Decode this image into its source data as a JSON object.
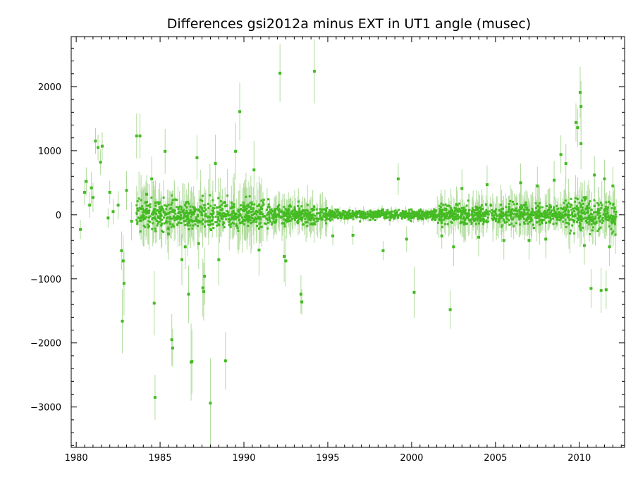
{
  "chart_data": {
    "type": "scatter",
    "title": "Differences gsi2012a minus EXT in UT1 angle    (musec)",
    "xlabel": "",
    "ylabel": "",
    "xlim": [
      1979.7,
      2012.7
    ],
    "ylim": [
      -3630,
      2780
    ],
    "x_ticks": [
      1980,
      1985,
      1990,
      1995,
      2000,
      2005,
      2010
    ],
    "x_tick_labels": [
      "1980",
      "1985",
      "1990",
      "1995",
      "2000",
      "2005",
      "2010"
    ],
    "y_ticks": [
      2000,
      1000,
      0,
      -1000,
      -2000,
      -3000
    ],
    "y_tick_labels": [
      "2000",
      "1000",
      "0",
      "−1000",
      "−2000",
      "−3000"
    ],
    "grid": false,
    "legend": "none",
    "colors": {
      "points": "#44bb22",
      "error_bars": "#b0dc9c",
      "frame": "#000000"
    },
    "series": [
      {
        "points": [
          {
            "x": 1980.25,
            "y": -230,
            "err": 150
          },
          {
            "x": 1980.5,
            "y": 350,
            "err": 200
          },
          {
            "x": 1980.6,
            "y": 520,
            "err": 220
          },
          {
            "x": 1980.8,
            "y": 150,
            "err": 200
          },
          {
            "x": 1980.9,
            "y": 420,
            "err": 250
          },
          {
            "x": 1981.0,
            "y": 270,
            "err": 230
          },
          {
            "x": 1981.15,
            "y": 1150,
            "err": 200
          },
          {
            "x": 1981.3,
            "y": 1050,
            "err": 200
          },
          {
            "x": 1981.45,
            "y": 820,
            "err": 200
          },
          {
            "x": 1981.55,
            "y": 1070,
            "err": 220
          },
          {
            "x": 1981.9,
            "y": -50,
            "err": 150
          },
          {
            "x": 1982.0,
            "y": 350,
            "err": 180
          },
          {
            "x": 1982.2,
            "y": 50,
            "err": 200
          },
          {
            "x": 1982.5,
            "y": 150,
            "err": 220
          },
          {
            "x": 1982.7,
            "y": -560,
            "err": 300
          },
          {
            "x": 1982.75,
            "y": -1660,
            "err": 500
          },
          {
            "x": 1982.8,
            "y": -720,
            "err": 400
          },
          {
            "x": 1982.85,
            "y": -1070,
            "err": 500
          },
          {
            "x": 1983.0,
            "y": 380,
            "err": 300
          },
          {
            "x": 1983.3,
            "y": -100,
            "err": 300
          },
          {
            "x": 1983.6,
            "y": 1230,
            "err": 350
          },
          {
            "x": 1983.8,
            "y": 1230,
            "err": 350
          },
          {
            "x": 1984.2,
            "y": 320,
            "err": 300
          },
          {
            "x": 1984.5,
            "y": 560,
            "err": 350
          },
          {
            "x": 1984.65,
            "y": -1380,
            "err": 500
          },
          {
            "x": 1984.7,
            "y": -2850,
            "err": 350
          },
          {
            "x": 1985.3,
            "y": 990,
            "err": 350
          },
          {
            "x": 1985.5,
            "y": -300,
            "err": 400
          },
          {
            "x": 1985.7,
            "y": -1950,
            "err": 400
          },
          {
            "x": 1985.75,
            "y": -2080,
            "err": 300
          },
          {
            "x": 1986.3,
            "y": -700,
            "err": 400
          },
          {
            "x": 1986.5,
            "y": -500,
            "err": 350
          },
          {
            "x": 1986.7,
            "y": -1240,
            "err": 450
          },
          {
            "x": 1986.85,
            "y": -2300,
            "err": 600
          },
          {
            "x": 1986.9,
            "y": -2290,
            "err": 500
          },
          {
            "x": 1987.2,
            "y": 890,
            "err": 350
          },
          {
            "x": 1987.3,
            "y": -450,
            "err": 400
          },
          {
            "x": 1987.55,
            "y": -1140,
            "err": 450
          },
          {
            "x": 1987.6,
            "y": -1200,
            "err": 450
          },
          {
            "x": 1987.65,
            "y": -960,
            "err": 450
          },
          {
            "x": 1988.0,
            "y": -2940,
            "err": 700
          },
          {
            "x": 1988.3,
            "y": 800,
            "err": 450
          },
          {
            "x": 1988.5,
            "y": -700,
            "err": 400
          },
          {
            "x": 1988.9,
            "y": -2280,
            "err": 450
          },
          {
            "x": 1989.5,
            "y": 990,
            "err": 450
          },
          {
            "x": 1989.75,
            "y": 1610,
            "err": 450
          },
          {
            "x": 1990.6,
            "y": 700,
            "err": 450
          },
          {
            "x": 1990.9,
            "y": -550,
            "err": 400
          },
          {
            "x": 1992.15,
            "y": 2210,
            "err": 450
          },
          {
            "x": 1992.4,
            "y": -650,
            "err": 400
          },
          {
            "x": 1992.5,
            "y": -720,
            "err": 400
          },
          {
            "x": 1993.4,
            "y": -1240,
            "err": 300
          },
          {
            "x": 1993.45,
            "y": -1360,
            "err": 200
          },
          {
            "x": 1994.2,
            "y": 2240,
            "err": 500
          },
          {
            "x": 1995.3,
            "y": -330,
            "err": 150
          },
          {
            "x": 1996.5,
            "y": -320,
            "err": 150
          },
          {
            "x": 1998.3,
            "y": -560,
            "err": 150
          },
          {
            "x": 1999.2,
            "y": 560,
            "err": 250
          },
          {
            "x": 1999.7,
            "y": -380,
            "err": 200
          },
          {
            "x": 2000.15,
            "y": -1210,
            "err": 400
          },
          {
            "x": 2001.8,
            "y": -330,
            "err": 200
          },
          {
            "x": 2002.3,
            "y": -1480,
            "err": 300
          },
          {
            "x": 2002.5,
            "y": -500,
            "err": 300
          },
          {
            "x": 2003.0,
            "y": 410,
            "err": 300
          },
          {
            "x": 2004.0,
            "y": -350,
            "err": 300
          },
          {
            "x": 2004.5,
            "y": 470,
            "err": 300
          },
          {
            "x": 2005.5,
            "y": -400,
            "err": 300
          },
          {
            "x": 2006.5,
            "y": 500,
            "err": 300
          },
          {
            "x": 2007.0,
            "y": -400,
            "err": 300
          },
          {
            "x": 2007.5,
            "y": 450,
            "err": 300
          },
          {
            "x": 2008.0,
            "y": -380,
            "err": 300
          },
          {
            "x": 2008.5,
            "y": 540,
            "err": 300
          },
          {
            "x": 2008.9,
            "y": 940,
            "err": 300
          },
          {
            "x": 2009.2,
            "y": 800,
            "err": 300
          },
          {
            "x": 2009.8,
            "y": 1440,
            "err": 300
          },
          {
            "x": 2009.9,
            "y": 1360,
            "err": 300
          },
          {
            "x": 2010.05,
            "y": 1910,
            "err": 400
          },
          {
            "x": 2010.1,
            "y": 1690,
            "err": 400
          },
          {
            "x": 2010.1,
            "y": 1110,
            "err": 400
          },
          {
            "x": 2010.3,
            "y": -480,
            "err": 300
          },
          {
            "x": 2010.7,
            "y": -1150,
            "err": 300
          },
          {
            "x": 2010.9,
            "y": 620,
            "err": 300
          },
          {
            "x": 2011.3,
            "y": -1180,
            "err": 350
          },
          {
            "x": 2011.5,
            "y": 560,
            "err": 300
          },
          {
            "x": 2011.6,
            "y": -1170,
            "err": 300
          },
          {
            "x": 2011.8,
            "y": -500,
            "err": 300
          },
          {
            "x": 2012.0,
            "y": 450,
            "err": 300
          }
        ]
      }
    ]
  }
}
